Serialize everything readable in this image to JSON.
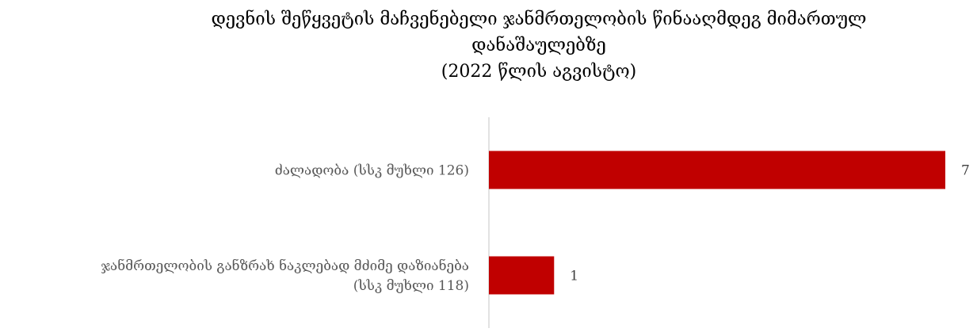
{
  "chart_data": {
    "type": "bar",
    "orientation": "horizontal",
    "title_lines": [
      "დევნის შეწყვეტის მაჩვენებელი ჯანმრთელობის წინააღმდეგ მიმართულ",
      "დანაშაულებზე",
      "(2022 წლის აგვისტო)"
    ],
    "categories": [
      [
        "ძალადობა (სსკ მუხლი 126)"
      ],
      [
        "ჯანმრთელობის განზრახ ნაკლებად მძიმე დაზიანება",
        "(სსკ მუხლი 118)"
      ]
    ],
    "values": [
      7,
      1
    ],
    "data_labels": [
      "7",
      "1"
    ],
    "xlim": [
      0,
      7
    ],
    "bar_color": "#C00000",
    "axis_color": "#D9D9D9",
    "grid": false,
    "legend": "none"
  }
}
